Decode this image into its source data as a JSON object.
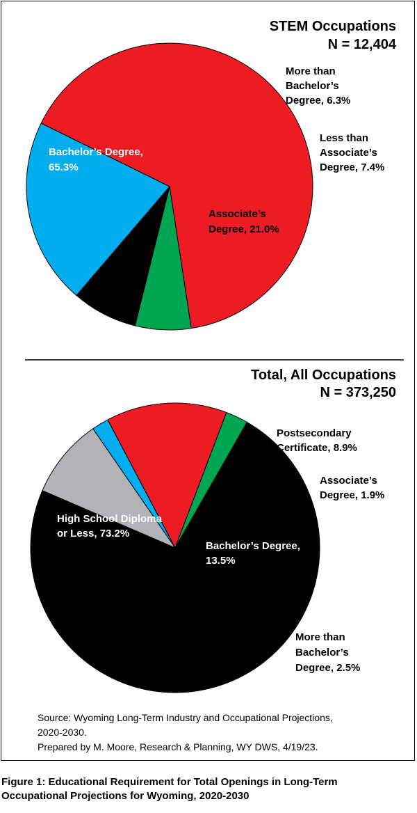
{
  "chart_data": [
    {
      "type": "pie",
      "title": "STEM Occupations",
      "subtitle": "N = 12,404",
      "colors": {
        "bachelors": "#ED1C24",
        "more_than_bachelors": "#00A651",
        "less_than_associates": "#000000",
        "associates": "#00AEEF"
      },
      "slices": [
        {
          "key": "bachelors",
          "label": [
            "Bachelor’s Degree,",
            "65.3%"
          ],
          "value": 65.3,
          "color": "#ED1C24",
          "label_color": "#ffffff",
          "label_inside": true
        },
        {
          "key": "more_than_bachelors",
          "label": [
            "More than",
            "Bachelor’s",
            "Degree, 6.3%"
          ],
          "value": 6.3,
          "color": "#00A651",
          "label_color": "#000000",
          "label_inside": false
        },
        {
          "key": "less_than_associates",
          "label": [
            "Less than",
            "Associate’s",
            "Degree, 7.4%"
          ],
          "value": 7.4,
          "color": "#000000",
          "label_color": "#000000",
          "label_inside": false
        },
        {
          "key": "associates",
          "label": [
            "Associate’s",
            "Degree, 21.0%"
          ],
          "value": 21.0,
          "color": "#00AEEF",
          "label_color": "#000000",
          "label_inside": true
        }
      ]
    },
    {
      "type": "pie",
      "title": "Total, All Occupations",
      "subtitle": "N = 373,250",
      "slices": [
        {
          "key": "high_school",
          "label": [
            "High School Diploma",
            "or Less, 73.2%"
          ],
          "value": 73.2,
          "color": "#000000",
          "label_color": "#ffffff",
          "label_inside": true
        },
        {
          "key": "postsecondary",
          "label": [
            "Postsecondary",
            "Certificate, 8.9%"
          ],
          "value": 8.9,
          "color": "#B1B3B6",
          "label_color": "#000000",
          "label_inside": false
        },
        {
          "key": "associates",
          "label": [
            "Associate’s",
            "Degree, 1.9%"
          ],
          "value": 1.9,
          "color": "#00AEEF",
          "label_color": "#000000",
          "label_inside": false
        },
        {
          "key": "bachelors",
          "label": [
            "Bachelor’s Degree,",
            "13.5%"
          ],
          "value": 13.5,
          "color": "#ED1C24",
          "label_color": "#ffffff",
          "label_inside": true
        },
        {
          "key": "more_than_bachelors",
          "label": [
            "More than",
            "Bachelor’s",
            "Degree, 2.5%"
          ],
          "value": 2.5,
          "color": "#00A651",
          "label_color": "#000000",
          "label_inside": false
        }
      ]
    }
  ],
  "source": {
    "line1": "Source: Wyoming Long-Term Industry and Occupational Projections,",
    "line2": "2020-2030.",
    "line3": "Prepared by M. Moore, Research & Planning, WY DWS, 4/19/23."
  },
  "caption": {
    "line1": "Figure 1: Educational Requirement for Total Openings in Long-Term",
    "line2": "Occupational Projections for Wyoming, 2020-2030"
  }
}
